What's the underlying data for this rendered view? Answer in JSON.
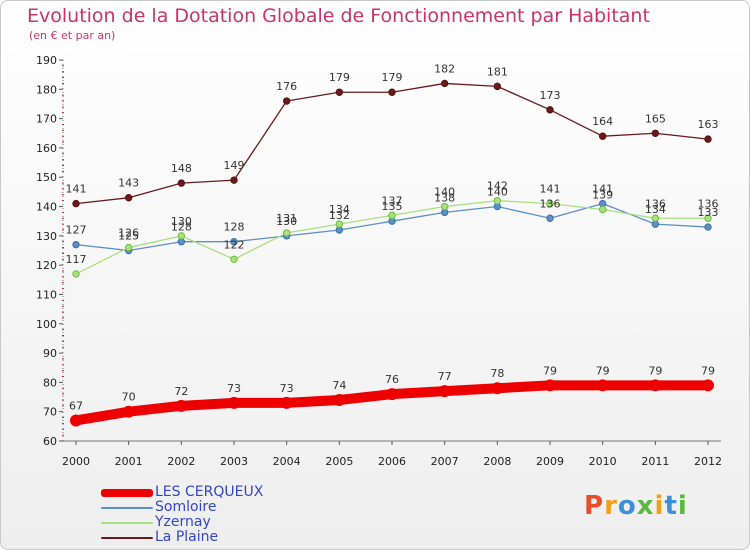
{
  "title": "Evolution de la Dotation Globale de Fonctionnement par Habitant",
  "subtitle": "(en € et par an)",
  "brand": {
    "text": "Proxiti",
    "letters": [
      {
        "ch": "P",
        "color": "#e94b2b"
      },
      {
        "ch": "r",
        "color": "#f0a018"
      },
      {
        "ch": "o",
        "color": "#3d8fd8"
      },
      {
        "ch": "x",
        "color": "#5ab83e"
      },
      {
        "ch": "i",
        "color": "#f0a018"
      },
      {
        "ch": "t",
        "color": "#3d8fd8"
      },
      {
        "ch": "i",
        "color": "#5ab83e"
      }
    ]
  },
  "chart_data": {
    "type": "line",
    "title": "Evolution de la Dotation Globale de Fonctionnement par Habitant",
    "subtitle": "(en € et par an)",
    "xlabel": "",
    "ylabel": "",
    "categories": [
      "2000",
      "2001",
      "2002",
      "2003",
      "2004",
      "2005",
      "2006",
      "2007",
      "2008",
      "2009",
      "2010",
      "2011",
      "2012"
    ],
    "ylim": [
      60,
      190
    ],
    "yticks": [
      60,
      70,
      80,
      90,
      100,
      110,
      120,
      130,
      140,
      150,
      160,
      170,
      180,
      190
    ],
    "grid": false,
    "legend_position": "bottom-left",
    "series": [
      {
        "name": "LES CERQUEUX",
        "color": "#ee0000",
        "emphasis": true,
        "values": [
          67,
          70,
          72,
          73,
          73,
          74,
          76,
          77,
          78,
          79,
          79,
          79,
          79
        ]
      },
      {
        "name": "Somloire",
        "color": "#5b8fc8",
        "values": [
          127,
          125,
          128,
          128,
          130,
          132,
          135,
          138,
          140,
          136,
          141,
          134,
          133
        ]
      },
      {
        "name": "Yzernay",
        "color": "#a8e080",
        "values": [
          117,
          126,
          130,
          122,
          131,
          134,
          137,
          140,
          142,
          141,
          139,
          136,
          136
        ]
      },
      {
        "name": "La Plaine",
        "color": "#6b1a1a",
        "values": [
          141,
          143,
          148,
          149,
          176,
          179,
          179,
          182,
          181,
          173,
          164,
          165,
          163
        ]
      }
    ]
  }
}
